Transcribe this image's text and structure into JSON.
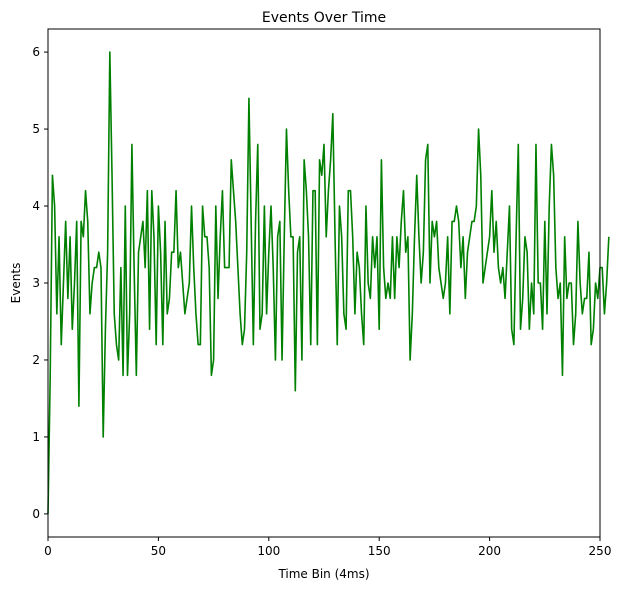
{
  "chart_data": {
    "type": "line",
    "title": "Events Over Time",
    "xlabel": "Time Bin (4ms)",
    "ylabel": "Events",
    "xlim": [
      0,
      250
    ],
    "ylim": [
      -0.3,
      6.3
    ],
    "xticks": [
      0,
      50,
      100,
      150,
      200,
      250
    ],
    "yticks": [
      0,
      1,
      2,
      3,
      4,
      5,
      6
    ],
    "grid": false,
    "series": [
      {
        "color": "#008000",
        "x_start": 0,
        "x_step": 1,
        "values": [
          0.0,
          1.8,
          4.4,
          4.0,
          2.6,
          3.6,
          2.2,
          3.0,
          3.8,
          2.8,
          3.6,
          2.4,
          3.0,
          3.8,
          1.4,
          3.8,
          3.6,
          4.2,
          3.8,
          2.6,
          3.0,
          3.2,
          3.2,
          3.4,
          3.2,
          1.0,
          2.4,
          3.4,
          6.0,
          4.4,
          2.6,
          2.2,
          2.0,
          3.2,
          1.8,
          4.0,
          1.8,
          2.6,
          4.8,
          3.2,
          1.8,
          3.4,
          3.6,
          3.8,
          3.2,
          4.2,
          2.4,
          4.2,
          3.6,
          2.2,
          4.0,
          3.4,
          2.2,
          3.8,
          2.6,
          2.8,
          3.4,
          3.4,
          4.2,
          3.2,
          3.4,
          3.0,
          2.6,
          2.8,
          3.0,
          4.0,
          3.2,
          2.6,
          2.2,
          2.2,
          4.0,
          3.6,
          3.6,
          3.2,
          1.8,
          2.0,
          4.0,
          2.8,
          3.6,
          4.2,
          3.2,
          3.2,
          3.2,
          4.6,
          4.2,
          3.8,
          3.2,
          2.6,
          2.2,
          2.4,
          3.4,
          5.4,
          3.8,
          2.2,
          3.8,
          4.8,
          2.4,
          2.6,
          4.0,
          2.6,
          3.4,
          4.0,
          3.2,
          2.0,
          3.6,
          3.8,
          2.0,
          3.6,
          5.0,
          4.2,
          3.6,
          3.6,
          1.6,
          3.4,
          3.6,
          2.0,
          4.6,
          4.2,
          3.6,
          2.2,
          4.2,
          4.2,
          2.2,
          4.6,
          4.4,
          4.8,
          3.6,
          4.2,
          4.6,
          5.2,
          3.6,
          2.2,
          4.0,
          3.6,
          2.6,
          2.4,
          4.2,
          4.2,
          3.6,
          2.6,
          3.4,
          3.2,
          2.6,
          2.2,
          4.0,
          3.0,
          2.8,
          3.6,
          3.2,
          3.6,
          2.4,
          4.6,
          3.2,
          2.8,
          3.0,
          2.8,
          3.6,
          2.8,
          3.6,
          3.2,
          3.8,
          4.2,
          3.4,
          3.6,
          2.0,
          2.6,
          3.6,
          4.4,
          3.6,
          3.0,
          3.4,
          4.6,
          4.8,
          3.0,
          3.8,
          3.6,
          3.8,
          3.2,
          3.0,
          2.8,
          3.0,
          3.6,
          2.6,
          3.8,
          3.8,
          4.0,
          3.8,
          3.2,
          3.6,
          2.8,
          3.4,
          3.6,
          3.8,
          3.8,
          4.0,
          5.0,
          4.4,
          3.0,
          3.2,
          3.4,
          3.6,
          4.2,
          3.4,
          3.8,
          3.2,
          3.0,
          3.2,
          2.8,
          3.4,
          4.0,
          2.4,
          2.2,
          3.6,
          4.8,
          2.4,
          2.8,
          3.6,
          3.4,
          2.4,
          3.0,
          2.6,
          4.8,
          3.0,
          3.0,
          2.4,
          3.8,
          2.6,
          4.0,
          4.8,
          4.4,
          3.2,
          2.8,
          3.0,
          1.8,
          3.6,
          2.8,
          3.0,
          3.0,
          2.2,
          2.6,
          3.8,
          3.0,
          2.6,
          2.8,
          2.8,
          3.4,
          2.2,
          2.4,
          3.0,
          2.8,
          3.2,
          3.2,
          2.6,
          3.0,
          3.6
        ]
      }
    ]
  }
}
